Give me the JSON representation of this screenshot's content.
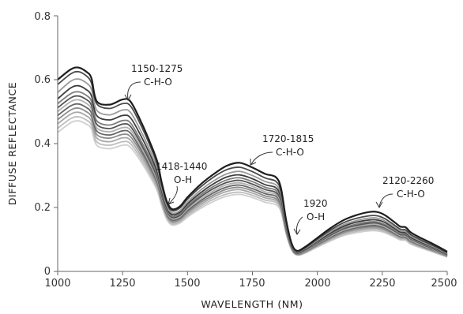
{
  "chart_data": {
    "type": "line",
    "title": "",
    "xlabel": "WAVELENGTH (NM)",
    "ylabel": "DIFFUSE REFLECTANCE",
    "xlim": [
      1000,
      2500
    ],
    "ylim": [
      0,
      0.8
    ],
    "xticks": [
      1000,
      1250,
      1500,
      1750,
      2000,
      2250,
      2500
    ],
    "yticks": [
      0,
      0.2,
      0.4,
      0.6,
      0.8
    ],
    "xtick_labels": [
      "1000",
      "1250",
      "1500",
      "1750",
      "2000",
      "2250",
      "2500"
    ],
    "ytick_labels": [
      "0",
      "0.2",
      "0.4",
      "0.6",
      "0.8"
    ],
    "grid": false,
    "legend": "none",
    "x": [
      1000,
      1050,
      1080,
      1110,
      1130,
      1150,
      1200,
      1250,
      1280,
      1320,
      1360,
      1385,
      1400,
      1420,
      1440,
      1470,
      1500,
      1550,
      1600,
      1650,
      1700,
      1750,
      1800,
      1840,
      1860,
      1880,
      1900,
      1920,
      1950,
      2000,
      2050,
      2100,
      2150,
      2200,
      2230,
      2260,
      2300,
      2320,
      2340,
      2360,
      2400,
      2450,
      2500
    ],
    "series": [
      {
        "values": [
          0.6,
          0.632,
          0.638,
          0.625,
          0.605,
          0.533,
          0.522,
          0.538,
          0.532,
          0.47,
          0.395,
          0.34,
          0.28,
          0.22,
          0.195,
          0.203,
          0.232,
          0.272,
          0.304,
          0.33,
          0.34,
          0.325,
          0.305,
          0.295,
          0.26,
          0.16,
          0.09,
          0.065,
          0.075,
          0.105,
          0.135,
          0.16,
          0.176,
          0.186,
          0.186,
          0.176,
          0.152,
          0.14,
          0.138,
          0.122,
          0.104,
          0.084,
          0.062
        ]
      },
      {
        "values": [
          0.585,
          0.618,
          0.625,
          0.612,
          0.59,
          0.525,
          0.51,
          0.525,
          0.518,
          0.458,
          0.385,
          0.33,
          0.272,
          0.214,
          0.19,
          0.198,
          0.226,
          0.264,
          0.295,
          0.318,
          0.326,
          0.312,
          0.292,
          0.282,
          0.25,
          0.155,
          0.088,
          0.063,
          0.072,
          0.101,
          0.129,
          0.152,
          0.166,
          0.174,
          0.174,
          0.165,
          0.143,
          0.132,
          0.13,
          0.115,
          0.098,
          0.079,
          0.058
        ]
      },
      {
        "values": [
          0.56,
          0.595,
          0.602,
          0.59,
          0.57,
          0.505,
          0.49,
          0.505,
          0.498,
          0.44,
          0.37,
          0.318,
          0.262,
          0.206,
          0.183,
          0.19,
          0.217,
          0.254,
          0.283,
          0.305,
          0.313,
          0.3,
          0.281,
          0.271,
          0.24,
          0.149,
          0.085,
          0.061,
          0.07,
          0.097,
          0.124,
          0.146,
          0.159,
          0.167,
          0.167,
          0.158,
          0.137,
          0.127,
          0.125,
          0.11,
          0.094,
          0.076,
          0.056
        ]
      },
      {
        "values": [
          0.54,
          0.574,
          0.581,
          0.569,
          0.55,
          0.488,
          0.474,
          0.488,
          0.481,
          0.425,
          0.358,
          0.308,
          0.254,
          0.2,
          0.178,
          0.185,
          0.211,
          0.246,
          0.274,
          0.295,
          0.302,
          0.29,
          0.271,
          0.262,
          0.232,
          0.144,
          0.083,
          0.059,
          0.068,
          0.094,
          0.12,
          0.141,
          0.154,
          0.161,
          0.161,
          0.153,
          0.133,
          0.123,
          0.121,
          0.107,
          0.091,
          0.074,
          0.054
        ]
      },
      {
        "values": [
          0.525,
          0.556,
          0.562,
          0.551,
          0.533,
          0.472,
          0.458,
          0.472,
          0.465,
          0.41,
          0.346,
          0.298,
          0.246,
          0.194,
          0.173,
          0.18,
          0.205,
          0.239,
          0.266,
          0.286,
          0.293,
          0.281,
          0.263,
          0.254,
          0.225,
          0.14,
          0.081,
          0.058,
          0.066,
          0.091,
          0.116,
          0.136,
          0.148,
          0.155,
          0.155,
          0.147,
          0.128,
          0.118,
          0.117,
          0.103,
          0.088,
          0.071,
          0.052
        ]
      },
      {
        "values": [
          0.512,
          0.543,
          0.549,
          0.538,
          0.52,
          0.461,
          0.447,
          0.461,
          0.454,
          0.4,
          0.337,
          0.29,
          0.24,
          0.189,
          0.169,
          0.175,
          0.2,
          0.233,
          0.259,
          0.278,
          0.285,
          0.273,
          0.256,
          0.247,
          0.219,
          0.136,
          0.079,
          0.057,
          0.065,
          0.089,
          0.113,
          0.133,
          0.144,
          0.151,
          0.151,
          0.143,
          0.125,
          0.115,
          0.114,
          0.101,
          0.086,
          0.069,
          0.051
        ]
      },
      {
        "values": [
          0.5,
          0.531,
          0.537,
          0.526,
          0.508,
          0.45,
          0.437,
          0.45,
          0.443,
          0.391,
          0.329,
          0.283,
          0.234,
          0.185,
          0.165,
          0.171,
          0.195,
          0.227,
          0.252,
          0.271,
          0.277,
          0.266,
          0.249,
          0.241,
          0.213,
          0.133,
          0.077,
          0.056,
          0.063,
          0.087,
          0.11,
          0.129,
          0.14,
          0.147,
          0.147,
          0.139,
          0.121,
          0.112,
          0.111,
          0.098,
          0.083,
          0.067,
          0.05
        ]
      },
      {
        "values": [
          0.488,
          0.518,
          0.524,
          0.513,
          0.496,
          0.44,
          0.427,
          0.44,
          0.433,
          0.382,
          0.322,
          0.277,
          0.229,
          0.181,
          0.161,
          0.167,
          0.19,
          0.221,
          0.246,
          0.264,
          0.27,
          0.259,
          0.243,
          0.235,
          0.208,
          0.13,
          0.076,
          0.055,
          0.062,
          0.085,
          0.107,
          0.126,
          0.137,
          0.143,
          0.143,
          0.136,
          0.118,
          0.11,
          0.108,
          0.096,
          0.081,
          0.066,
          0.049
        ]
      },
      {
        "values": [
          0.475,
          0.505,
          0.511,
          0.5,
          0.484,
          0.429,
          0.417,
          0.429,
          0.422,
          0.373,
          0.314,
          0.27,
          0.223,
          0.176,
          0.157,
          0.163,
          0.185,
          0.215,
          0.239,
          0.257,
          0.263,
          0.252,
          0.236,
          0.228,
          0.202,
          0.126,
          0.074,
          0.054,
          0.06,
          0.082,
          0.104,
          0.122,
          0.133,
          0.139,
          0.139,
          0.132,
          0.115,
          0.107,
          0.105,
          0.093,
          0.079,
          0.064,
          0.048
        ]
      },
      {
        "values": [
          0.462,
          0.492,
          0.498,
          0.487,
          0.471,
          0.418,
          0.406,
          0.418,
          0.411,
          0.363,
          0.306,
          0.263,
          0.218,
          0.172,
          0.153,
          0.159,
          0.18,
          0.209,
          0.233,
          0.25,
          0.256,
          0.245,
          0.23,
          0.222,
          0.197,
          0.123,
          0.072,
          0.053,
          0.059,
          0.08,
          0.101,
          0.119,
          0.129,
          0.135,
          0.135,
          0.128,
          0.112,
          0.104,
          0.102,
          0.09,
          0.077,
          0.062,
          0.047
        ]
      },
      {
        "values": [
          0.448,
          0.478,
          0.484,
          0.474,
          0.458,
          0.406,
          0.395,
          0.406,
          0.4,
          0.353,
          0.298,
          0.256,
          0.212,
          0.167,
          0.149,
          0.155,
          0.175,
          0.203,
          0.226,
          0.242,
          0.248,
          0.238,
          0.223,
          0.216,
          0.191,
          0.12,
          0.07,
          0.052,
          0.057,
          0.078,
          0.098,
          0.115,
          0.125,
          0.131,
          0.131,
          0.124,
          0.109,
          0.101,
          0.099,
          0.088,
          0.075,
          0.061,
          0.046
        ]
      },
      {
        "values": [
          0.435,
          0.465,
          0.471,
          0.461,
          0.446,
          0.395,
          0.384,
          0.395,
          0.389,
          0.344,
          0.29,
          0.249,
          0.206,
          0.163,
          0.145,
          0.151,
          0.17,
          0.197,
          0.219,
          0.235,
          0.241,
          0.231,
          0.216,
          0.209,
          0.186,
          0.117,
          0.069,
          0.051,
          0.056,
          0.076,
          0.095,
          0.112,
          0.121,
          0.127,
          0.127,
          0.121,
          0.106,
          0.098,
          0.097,
          0.085,
          0.073,
          0.059,
          0.045
        ]
      }
    ],
    "annotations": [
      {
        "range": "1150-1275",
        "group": "C-H-O"
      },
      {
        "range": "1418-1440",
        "group": "O-H"
      },
      {
        "range": "1720-1815",
        "group": "C-H-O"
      },
      {
        "range": "1920",
        "group": "O-H"
      },
      {
        "range": "2120-2260",
        "group": "C-H-O"
      }
    ]
  }
}
